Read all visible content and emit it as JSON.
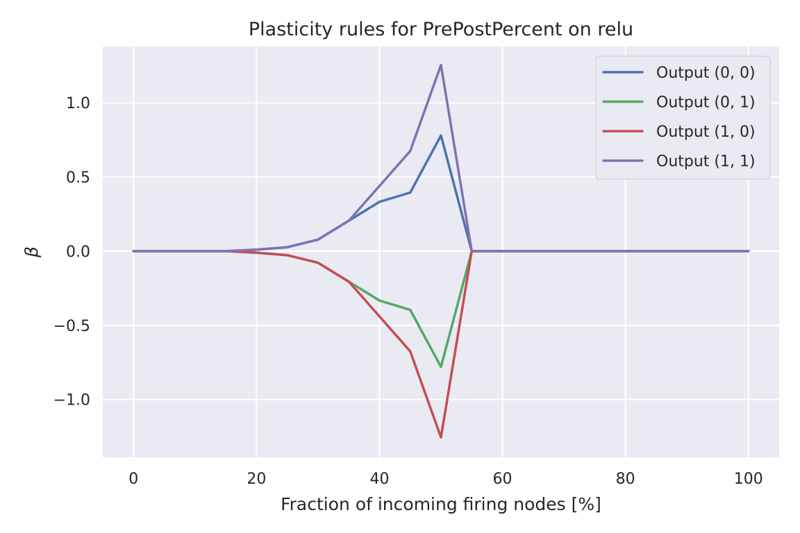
{
  "chart_data": {
    "type": "line",
    "title": "Plasticity rules for PrePostPercent on relu",
    "xlabel": "Fraction of incoming firing nodes [%]",
    "ylabel": "β",
    "xlim": [
      -5,
      105
    ],
    "ylim": [
      -1.39,
      1.38
    ],
    "xticks": [
      0,
      20,
      40,
      60,
      80,
      100
    ],
    "xtick_labels": [
      "0",
      "20",
      "40",
      "60",
      "80",
      "100"
    ],
    "yticks": [
      -1.0,
      -0.5,
      0.0,
      0.5,
      1.0
    ],
    "ytick_labels": [
      "−1.0",
      "−0.5",
      "0.0",
      "0.5",
      "1.0"
    ],
    "grid": true,
    "legend_position": "top-right",
    "x": [
      0,
      5,
      10,
      15,
      20,
      25,
      30,
      35,
      40,
      45,
      50,
      55,
      60,
      65,
      70,
      75,
      80,
      85,
      90,
      95,
      100
    ],
    "series": [
      {
        "name": "Output (0, 0)",
        "color": "#4c72b0",
        "values": [
          0,
          0,
          0,
          0,
          0.01,
          0.027,
          0.078,
          0.205,
          0.333,
          0.395,
          0.78,
          0,
          0,
          0,
          0,
          0,
          0,
          0,
          0,
          0,
          0
        ]
      },
      {
        "name": "Output (0, 1)",
        "color": "#55a868",
        "values": [
          0,
          0,
          0,
          0,
          -0.01,
          -0.027,
          -0.078,
          -0.205,
          -0.333,
          -0.395,
          -0.78,
          0,
          0,
          0,
          0,
          0,
          0,
          0,
          0,
          0,
          0
        ]
      },
      {
        "name": "Output (1, 0)",
        "color": "#c44e52",
        "values": [
          0,
          0,
          0,
          0,
          -0.01,
          -0.027,
          -0.078,
          -0.205,
          -0.44,
          -0.675,
          -1.255,
          0,
          0,
          0,
          0,
          0,
          0,
          0,
          0,
          0,
          0
        ]
      },
      {
        "name": "Output (1, 1)",
        "color": "#8172b2",
        "values": [
          0,
          0,
          0,
          0,
          0.01,
          0.027,
          0.078,
          0.205,
          0.44,
          0.675,
          1.255,
          0,
          0,
          0,
          0,
          0,
          0,
          0,
          0,
          0,
          0
        ]
      }
    ]
  }
}
